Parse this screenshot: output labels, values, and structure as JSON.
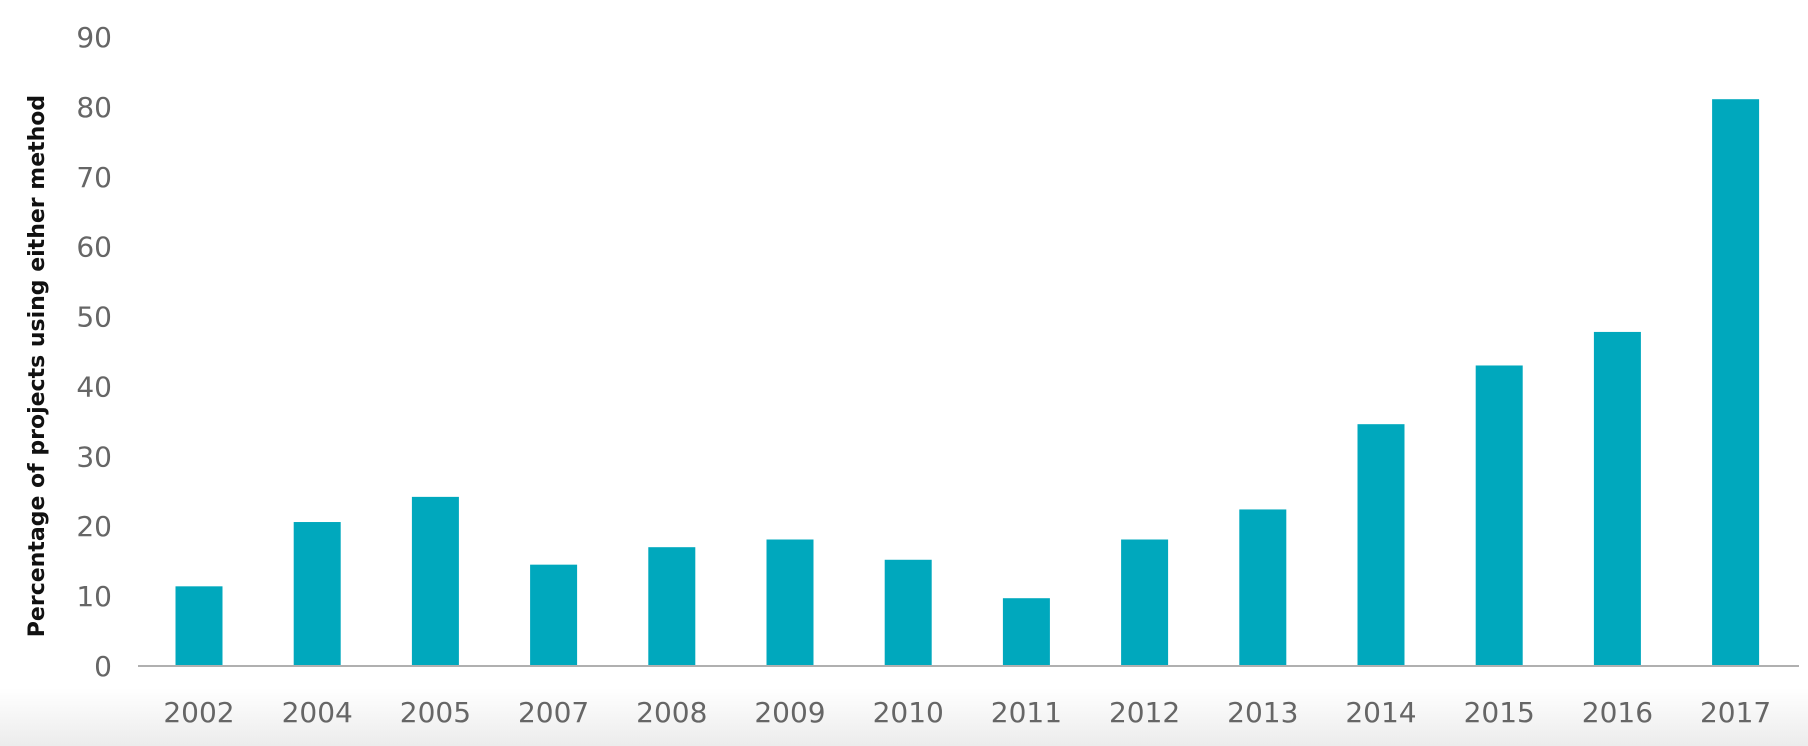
{
  "chart_data": {
    "type": "bar",
    "title": "",
    "xlabel": "",
    "ylabel": "Percentage of projects using either method",
    "categories": [
      "2002",
      "2004",
      "2005",
      "2007",
      "2008",
      "2009",
      "2010",
      "2011",
      "2012",
      "2013",
      "2014",
      "2015",
      "2016",
      "2017"
    ],
    "values": [
      11.4,
      20.6,
      24.2,
      14.5,
      17.0,
      18.1,
      15.2,
      9.7,
      18.1,
      22.4,
      34.6,
      43.0,
      47.8,
      81.1
    ],
    "ylim": [
      0,
      90
    ],
    "yticks": [
      "0",
      "10",
      "20",
      "30",
      "40",
      "50",
      "60",
      "70",
      "80",
      "90"
    ],
    "grid": false,
    "legend": "none",
    "bar_color": "#00a8bd",
    "axis_color": "#b0b0b0"
  }
}
